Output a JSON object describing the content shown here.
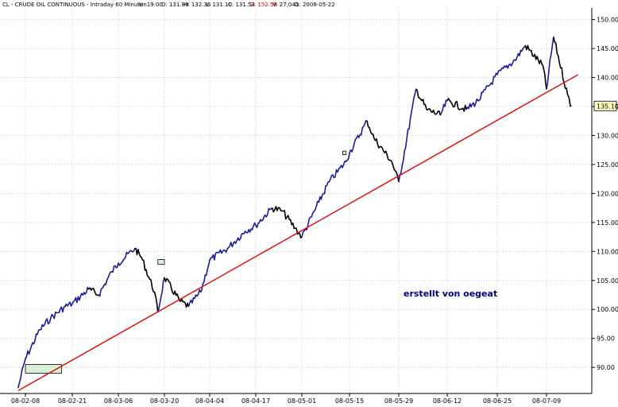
{
  "header": {
    "symbol": "CL - CRUDE OIL CONTINUOUS - Intraday 60 Minuten",
    "fields": [
      {
        "label": "U:",
        "value": "19:00"
      },
      {
        "label": "O:",
        "value": "131.89"
      },
      {
        "label": "H:",
        "value": "132.36"
      },
      {
        "label": "L:",
        "value": "131.10"
      },
      {
        "label": "C:",
        "value": "131.54"
      },
      {
        "label": "Z:",
        "value": "152.59",
        "highlight": true
      },
      {
        "label": "V:",
        "value": "27,041"
      },
      {
        "label": "D:",
        "value": "2008-05-22"
      }
    ]
  },
  "annotation": "erstellt von oegeat",
  "colors": {
    "price_up": "#1c1c9c",
    "price_down": "#000000",
    "trendline": "#e01010",
    "grid": "#c8c8c8",
    "last_price_bg": "#ffffc0",
    "box_fill": "#d8f0d8"
  },
  "chart_data": {
    "type": "line",
    "title": "CL - CRUDE OIL CONTINUOUS - Intraday 60 Minuten",
    "xlabel": "",
    "ylabel": "",
    "ylim": [
      85.5,
      152
    ],
    "grid": true,
    "x_ticks": [
      "08-02-08",
      "08-02-21",
      "08-03-06",
      "08-03-20",
      "08-04-04",
      "08-04-17",
      "08-05-01",
      "08-05-15",
      "08-05-29",
      "08-06-12",
      "08-06-25",
      "08-07-09"
    ],
    "y_ticks": [
      90,
      95,
      100,
      105,
      110,
      115,
      120,
      125,
      130,
      135,
      140,
      145,
      150
    ],
    "y_tick_labels": [
      "90.00",
      "95.00",
      "100.00",
      "105.00",
      "110.00",
      "115.00",
      "120.00",
      "125.00",
      "130.00",
      "135.00",
      "140.00",
      "145.00",
      "150.00"
    ],
    "last_price": "135.10",
    "series": [
      {
        "style": "price",
        "x": [
          "08-02-06",
          "08-02-08",
          "08-02-12",
          "08-02-15",
          "08-02-19",
          "08-02-21",
          "08-02-26",
          "08-02-29",
          "08-03-04",
          "08-03-06",
          "08-03-11",
          "08-03-13",
          "08-03-17",
          "08-03-18",
          "08-03-20",
          "08-03-25",
          "08-03-28",
          "08-04-01",
          "08-04-04",
          "08-04-09",
          "08-04-14",
          "08-04-17",
          "08-04-22",
          "08-04-25",
          "08-04-29",
          "08-05-01",
          "08-05-06",
          "08-05-09",
          "08-05-14",
          "08-05-15",
          "08-05-20",
          "08-05-22",
          "08-05-27",
          "08-05-29",
          "08-06-03",
          "08-06-06",
          "08-06-10",
          "08-06-12",
          "08-06-17",
          "08-06-20",
          "08-06-25",
          "08-06-30",
          "08-07-03",
          "08-07-08",
          "08-07-09",
          "08-07-11",
          "08-07-15",
          "08-07-16"
        ],
        "y": [
          86.5,
          91.5,
          96.5,
          98.5,
          100.5,
          101.0,
          103.5,
          102.5,
          106.5,
          108.0,
          110.5,
          109.0,
          103.0,
          99.5,
          105.5,
          101.5,
          100.5,
          103.0,
          108.5,
          110.5,
          113.5,
          114.5,
          117.5,
          117.0,
          114.0,
          112.5,
          118.5,
          122.0,
          125.5,
          127.0,
          132.5,
          129.5,
          125.5,
          122.0,
          138.0,
          134.5,
          133.5,
          136.0,
          134.5,
          136.0,
          140.5,
          143.0,
          145.5,
          142.0,
          138.0,
          147.0,
          137.0,
          135.1
        ]
      }
    ],
    "trendline": {
      "x": [
        "08-02-06",
        "08-07-18"
      ],
      "y": [
        86.0,
        140.5
      ]
    },
    "boxes": [
      {
        "x": [
          "08-02-08",
          "08-02-18"
        ],
        "y": [
          89.0,
          90.5
        ]
      },
      {
        "x": [
          "08-03-18",
          "08-03-20"
        ],
        "y": [
          107.8,
          108.6
        ]
      },
      {
        "x": [
          "08-05-13",
          "08-05-14"
        ],
        "y": [
          126.7,
          127.3
        ]
      }
    ]
  }
}
